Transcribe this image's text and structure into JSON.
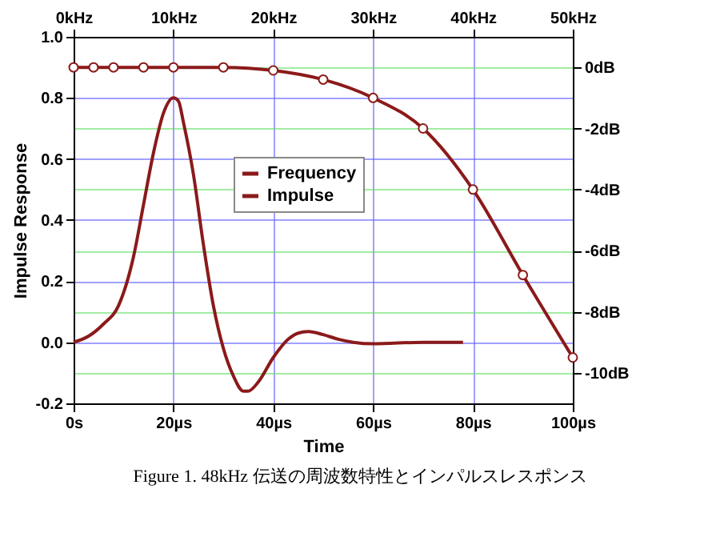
{
  "chart_data": {
    "type": "line",
    "x2label": "Time",
    "ylabel": "Impulse Response",
    "x2lim": [
      0,
      100
    ],
    "x2ticks": [
      {
        "value": 0,
        "label": "0s"
      },
      {
        "value": 20,
        "label": "20µs"
      },
      {
        "value": 40,
        "label": "40µs"
      },
      {
        "value": 60,
        "label": "60µs"
      },
      {
        "value": 80,
        "label": "80µs"
      },
      {
        "value": 100,
        "label": "100µs"
      }
    ],
    "xlim": [
      0,
      50
    ],
    "xticks": [
      {
        "value": 0,
        "label": "0kHz"
      },
      {
        "value": 10,
        "label": "10kHz"
      },
      {
        "value": 20,
        "label": "20kHz"
      },
      {
        "value": 30,
        "label": "30kHz"
      },
      {
        "value": 40,
        "label": "40kHz"
      },
      {
        "value": 50,
        "label": "50kHz"
      }
    ],
    "ylim": [
      -0.2,
      1.0
    ],
    "yticks": [
      {
        "value": -0.2,
        "label": "-0.2"
      },
      {
        "value": 0,
        "label": "0.0"
      },
      {
        "value": 0.2,
        "label": "0.2"
      },
      {
        "value": 0.4,
        "label": "0.4"
      },
      {
        "value": 0.6,
        "label": "0.6"
      },
      {
        "value": 0.8,
        "label": "0.8"
      },
      {
        "value": 1.0,
        "label": "1.0"
      }
    ],
    "y2lim": [
      -11,
      1
    ],
    "y2ticks": [
      {
        "value": 0,
        "label": "0dB"
      },
      {
        "value": -2,
        "label": "-2dB"
      },
      {
        "value": -4,
        "label": "-4dB"
      },
      {
        "value": -6,
        "label": "-6dB"
      },
      {
        "value": -8,
        "label": "-8dB"
      },
      {
        "value": -10,
        "label": "-10dB"
      }
    ],
    "grid": true,
    "legend": "top",
    "series": [
      {
        "name": "Frequency",
        "color": "#8b1a1a",
        "axis": "y2",
        "marker": "circle",
        "x": [
          0,
          2,
          4,
          7,
          10,
          15,
          20,
          25,
          30,
          35,
          40,
          45,
          50
        ],
        "values": [
          0,
          0,
          0,
          0,
          0,
          0,
          -0.1,
          -0.4,
          -1.0,
          -2.0,
          -4.0,
          -6.8,
          -9.5
        ]
      },
      {
        "name": "Impulse",
        "color": "#8b1a1a",
        "axis": "x2",
        "x": [
          0,
          3,
          6,
          9,
          12,
          14,
          16,
          18,
          20,
          21,
          22,
          24,
          26,
          28,
          30,
          32,
          34,
          35,
          37,
          40,
          43,
          45,
          47,
          50,
          53,
          56,
          60,
          70,
          78
        ],
        "values": [
          0,
          0.02,
          0.06,
          0.12,
          0.28,
          0.45,
          0.62,
          0.75,
          0.8,
          0.79,
          0.72,
          0.55,
          0.32,
          0.12,
          -0.02,
          -0.11,
          -0.16,
          -0.16,
          -0.13,
          -0.05,
          0.01,
          0.03,
          0.035,
          0.025,
          0.01,
          0,
          -0.005,
          0,
          0
        ]
      }
    ],
    "annotations": [
      "Figure 1. 48kHz 伝送の周波数特性とインパルスレスポンス"
    ]
  }
}
